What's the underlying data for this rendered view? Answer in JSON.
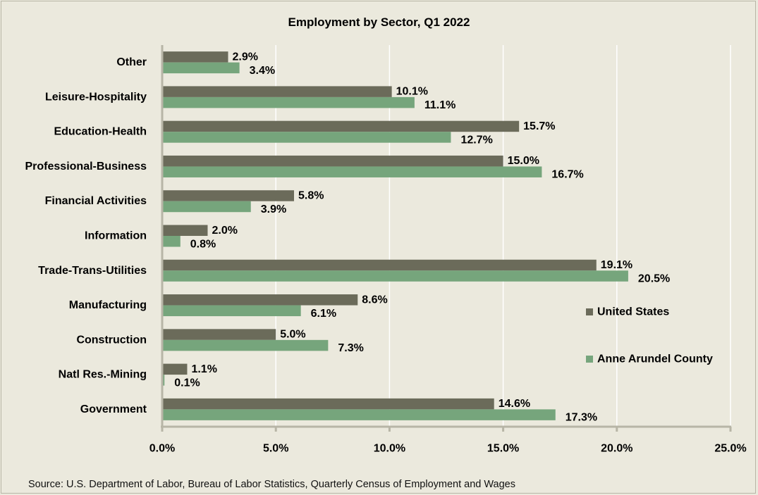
{
  "chart_data": {
    "type": "bar",
    "orientation": "horizontal",
    "title": "Employment by Sector, Q1 2022",
    "categories": [
      "Other",
      "Leisure-Hospitality",
      "Education-Health",
      "Professional-Business",
      "Financial Activities",
      "Information",
      "Trade-Trans-Utilities",
      "Manufacturing",
      "Construction",
      "Natl Res.-Mining",
      "Government"
    ],
    "series": [
      {
        "name": "United States",
        "color": "#6b6b5a",
        "values": [
          2.9,
          10.1,
          15.7,
          15.0,
          5.8,
          2.0,
          19.1,
          8.6,
          5.0,
          1.1,
          14.6
        ],
        "labels": [
          "2.9%",
          "10.1%",
          "15.7%",
          "15.0%",
          "5.8%",
          "2.0%",
          "19.1%",
          "8.6%",
          "5.0%",
          "1.1%",
          "14.6%"
        ]
      },
      {
        "name": "Anne Arundel County",
        "color": "#76a57c",
        "values": [
          3.4,
          11.1,
          12.7,
          16.7,
          3.9,
          0.8,
          20.5,
          6.1,
          7.3,
          0.1,
          17.3
        ],
        "labels": [
          "3.4%",
          "11.1%",
          "12.7%",
          "16.7%",
          "3.9%",
          "0.8%",
          "20.5%",
          "6.1%",
          "7.3%",
          "0.1%",
          "17.3%"
        ]
      }
    ],
    "xlim": [
      0,
      25
    ],
    "xticks": [
      0,
      5,
      10,
      15,
      20,
      25
    ],
    "xtick_labels": [
      "0.0%",
      "5.0%",
      "10.0%",
      "15.0%",
      "20.0%",
      "25.0%"
    ],
    "xlabel": "",
    "ylabel": "",
    "grid": "vertical",
    "legend_position": "right",
    "axis_color": "#b7b5a6",
    "grid_color": "#ffffff"
  },
  "source": "Source: U.S. Department of Labor, Bureau of Labor Statistics, Quarterly Census of Employment and Wages"
}
